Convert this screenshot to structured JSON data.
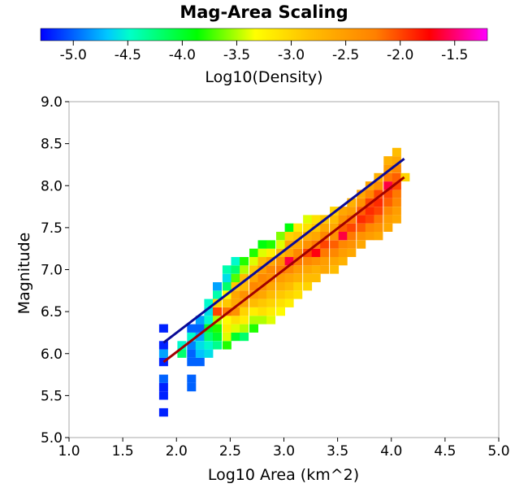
{
  "chart_data": {
    "type": "heatmap",
    "title": "Mag-Area Scaling",
    "xlabel": "Log10 Area (km^2)",
    "ylabel": "Magnitude",
    "xlim": [
      1.0,
      5.0
    ],
    "ylim": [
      5.0,
      9.0
    ],
    "x_ticks": [
      "1.0",
      "1.5",
      "2.0",
      "2.5",
      "3.0",
      "3.5",
      "4.0",
      "4.5",
      "5.0"
    ],
    "y_ticks": [
      "5.0",
      "5.5",
      "6.0",
      "6.5",
      "7.0",
      "7.5",
      "8.0",
      "8.5",
      "9.0"
    ],
    "grid": false,
    "colorbar": {
      "label": "Log10(Density)",
      "range": [
        -5.3,
        -1.2
      ],
      "ticks": [
        "-5.0",
        "-4.5",
        "-4.0",
        "-3.5",
        "-3.0",
        "-2.5",
        "-2.0",
        "-1.5"
      ],
      "colormap": "rainbow: blue-cyan-green-yellow-orange-red-magenta"
    },
    "bin_size": {
      "x": 0.0833,
      "y": 0.1
    },
    "cells": [
      [
        1.88,
        5.3,
        -5.2
      ],
      [
        1.88,
        5.5,
        -5.2
      ],
      [
        1.88,
        5.6,
        -5.2
      ],
      [
        1.88,
        5.7,
        -5.0
      ],
      [
        1.88,
        5.9,
        -5.2
      ],
      [
        1.88,
        6.0,
        -4.8
      ],
      [
        1.88,
        6.1,
        -5.2
      ],
      [
        1.88,
        6.3,
        -5.2
      ],
      [
        2.05,
        6.0,
        -4.2
      ],
      [
        2.05,
        6.1,
        -4.5
      ],
      [
        2.14,
        5.6,
        -5.0
      ],
      [
        2.14,
        5.7,
        -5.0
      ],
      [
        2.14,
        5.9,
        -5.0
      ],
      [
        2.14,
        6.0,
        -5.0
      ],
      [
        2.14,
        6.1,
        -4.9
      ],
      [
        2.14,
        6.2,
        -4.5
      ],
      [
        2.14,
        6.3,
        -5.0
      ],
      [
        2.22,
        5.9,
        -5.0
      ],
      [
        2.22,
        6.0,
        -4.7
      ],
      [
        2.22,
        6.1,
        -4.6
      ],
      [
        2.22,
        6.2,
        -4.8
      ],
      [
        2.22,
        6.3,
        -5.0
      ],
      [
        2.22,
        6.4,
        -4.8
      ],
      [
        2.3,
        6.0,
        -4.6
      ],
      [
        2.3,
        6.1,
        -4.5
      ],
      [
        2.3,
        6.2,
        -4.2
      ],
      [
        2.3,
        6.3,
        -4.0
      ],
      [
        2.3,
        6.4,
        -4.5
      ],
      [
        2.3,
        6.5,
        -4.6
      ],
      [
        2.3,
        6.6,
        -4.5
      ],
      [
        2.38,
        6.1,
        -4.3
      ],
      [
        2.38,
        6.2,
        -4.0
      ],
      [
        2.38,
        6.3,
        -3.8
      ],
      [
        2.38,
        6.4,
        -3.5
      ],
      [
        2.38,
        6.5,
        -2.0
      ],
      [
        2.38,
        6.6,
        -3.0
      ],
      [
        2.38,
        6.7,
        -4.4
      ],
      [
        2.38,
        6.8,
        -4.8
      ],
      [
        2.47,
        6.1,
        -3.8
      ],
      [
        2.47,
        6.2,
        -3.4
      ],
      [
        2.47,
        6.3,
        -3.2
      ],
      [
        2.47,
        6.4,
        -3.3
      ],
      [
        2.47,
        6.5,
        -2.2
      ],
      [
        2.47,
        6.6,
        -2.9
      ],
      [
        2.47,
        6.7,
        -3.3
      ],
      [
        2.47,
        6.8,
        -4.2
      ],
      [
        2.47,
        6.9,
        -4.6
      ],
      [
        2.47,
        7.0,
        -4.4
      ],
      [
        2.55,
        6.2,
        -4.0
      ],
      [
        2.55,
        6.3,
        -3.4
      ],
      [
        2.55,
        6.4,
        -3.1
      ],
      [
        2.55,
        6.5,
        -2.4
      ],
      [
        2.55,
        6.6,
        -2.6
      ],
      [
        2.55,
        6.7,
        -2.6
      ],
      [
        2.55,
        6.8,
        -2.9
      ],
      [
        2.55,
        6.9,
        -3.7
      ],
      [
        2.55,
        7.0,
        -4.2
      ],
      [
        2.55,
        7.1,
        -4.5
      ],
      [
        2.63,
        6.2,
        -4.2
      ],
      [
        2.63,
        6.3,
        -3.5
      ],
      [
        2.63,
        6.4,
        -3.2
      ],
      [
        2.63,
        6.5,
        -3.0
      ],
      [
        2.63,
        6.6,
        -2.6
      ],
      [
        2.63,
        6.7,
        -2.4
      ],
      [
        2.63,
        6.8,
        -2.8
      ],
      [
        2.63,
        6.9,
        -2.8
      ],
      [
        2.63,
        7.0,
        -3.5
      ],
      [
        2.63,
        7.1,
        -3.8
      ],
      [
        2.72,
        6.3,
        -3.8
      ],
      [
        2.72,
        6.4,
        -3.5
      ],
      [
        2.72,
        6.5,
        -3.2
      ],
      [
        2.72,
        6.6,
        -2.8
      ],
      [
        2.72,
        6.7,
        -2.5
      ],
      [
        2.72,
        6.8,
        -2.3
      ],
      [
        2.72,
        6.9,
        -2.6
      ],
      [
        2.72,
        7.0,
        -2.9
      ],
      [
        2.72,
        7.1,
        -3.4
      ],
      [
        2.72,
        7.2,
        -3.8
      ],
      [
        2.8,
        6.4,
        -3.5
      ],
      [
        2.8,
        6.5,
        -3.1
      ],
      [
        2.8,
        6.6,
        -2.9
      ],
      [
        2.8,
        6.7,
        -2.6
      ],
      [
        2.8,
        6.8,
        -2.4
      ],
      [
        2.8,
        6.9,
        -2.3
      ],
      [
        2.8,
        7.0,
        -2.5
      ],
      [
        2.8,
        7.1,
        -2.8
      ],
      [
        2.8,
        7.2,
        -3.4
      ],
      [
        2.8,
        7.3,
        -3.9
      ],
      [
        2.88,
        6.4,
        -3.4
      ],
      [
        2.88,
        6.5,
        -3.2
      ],
      [
        2.88,
        6.6,
        -3.0
      ],
      [
        2.88,
        6.7,
        -2.8
      ],
      [
        2.88,
        6.8,
        -2.6
      ],
      [
        2.88,
        6.9,
        -2.4
      ],
      [
        2.88,
        7.0,
        -2.3
      ],
      [
        2.88,
        7.1,
        -2.6
      ],
      [
        2.88,
        7.2,
        -3.2
      ],
      [
        2.88,
        7.3,
        -3.8
      ],
      [
        2.97,
        6.5,
        -3.3
      ],
      [
        2.97,
        6.6,
        -3.1
      ],
      [
        2.97,
        6.7,
        -2.9
      ],
      [
        2.97,
        6.8,
        -2.7
      ],
      [
        2.97,
        6.9,
        -2.5
      ],
      [
        2.97,
        7.0,
        -2.2
      ],
      [
        2.97,
        7.1,
        -2.4
      ],
      [
        2.97,
        7.2,
        -2.8
      ],
      [
        2.97,
        7.3,
        -3.4
      ],
      [
        2.97,
        7.4,
        -3.6
      ],
      [
        3.05,
        6.6,
        -3.2
      ],
      [
        3.05,
        6.7,
        -3.0
      ],
      [
        3.05,
        6.8,
        -2.8
      ],
      [
        3.05,
        6.9,
        -2.6
      ],
      [
        3.05,
        7.0,
        -2.3
      ],
      [
        3.05,
        7.1,
        -1.6
      ],
      [
        3.05,
        7.2,
        -2.6
      ],
      [
        3.05,
        7.3,
        -2.6
      ],
      [
        3.05,
        7.4,
        -3.0
      ],
      [
        3.05,
        7.5,
        -3.9
      ],
      [
        3.13,
        6.7,
        -3.1
      ],
      [
        3.13,
        6.8,
        -3.0
      ],
      [
        3.13,
        6.9,
        -2.7
      ],
      [
        3.13,
        7.0,
        -2.5
      ],
      [
        3.13,
        7.1,
        -2.2
      ],
      [
        3.13,
        7.2,
        -2.3
      ],
      [
        3.13,
        7.3,
        -2.6
      ],
      [
        3.13,
        7.4,
        -2.9
      ],
      [
        3.13,
        7.5,
        -3.2
      ],
      [
        3.22,
        6.8,
        -3.0
      ],
      [
        3.22,
        6.9,
        -2.8
      ],
      [
        3.22,
        7.0,
        -2.6
      ],
      [
        3.22,
        7.1,
        -2.3
      ],
      [
        3.22,
        7.2,
        -2.0
      ],
      [
        3.22,
        7.3,
        -2.4
      ],
      [
        3.22,
        7.4,
        -2.7
      ],
      [
        3.22,
        7.5,
        -3.1
      ],
      [
        3.22,
        7.6,
        -3.4
      ],
      [
        3.3,
        6.9,
        -2.8
      ],
      [
        3.3,
        7.0,
        -2.7
      ],
      [
        3.3,
        7.1,
        -2.4
      ],
      [
        3.3,
        7.2,
        -1.7
      ],
      [
        3.3,
        7.3,
        -2.2
      ],
      [
        3.3,
        7.4,
        -2.6
      ],
      [
        3.3,
        7.5,
        -2.9
      ],
      [
        3.3,
        7.6,
        -3.1
      ],
      [
        3.38,
        7.0,
        -2.6
      ],
      [
        3.38,
        7.1,
        -2.5
      ],
      [
        3.38,
        7.2,
        -2.2
      ],
      [
        3.38,
        7.3,
        -2.0
      ],
      [
        3.38,
        7.4,
        -2.3
      ],
      [
        3.38,
        7.5,
        -2.6
      ],
      [
        3.38,
        7.6,
        -2.9
      ],
      [
        3.47,
        7.0,
        -2.8
      ],
      [
        3.47,
        7.1,
        -2.6
      ],
      [
        3.47,
        7.2,
        -2.3
      ],
      [
        3.47,
        7.3,
        -2.1
      ],
      [
        3.47,
        7.4,
        -2.4
      ],
      [
        3.47,
        7.5,
        -2.6
      ],
      [
        3.47,
        7.6,
        -2.8
      ],
      [
        3.47,
        7.7,
        -3.0
      ],
      [
        3.55,
        7.1,
        -2.7
      ],
      [
        3.55,
        7.2,
        -2.5
      ],
      [
        3.55,
        7.3,
        -2.3
      ],
      [
        3.55,
        7.4,
        -1.6
      ],
      [
        3.55,
        7.5,
        -2.1
      ],
      [
        3.55,
        7.6,
        -2.4
      ],
      [
        3.55,
        7.7,
        -2.6
      ],
      [
        3.63,
        7.2,
        -2.6
      ],
      [
        3.63,
        7.3,
        -2.4
      ],
      [
        3.63,
        7.4,
        -2.2
      ],
      [
        3.63,
        7.5,
        -2.0
      ],
      [
        3.63,
        7.6,
        -2.2
      ],
      [
        3.63,
        7.7,
        -2.5
      ],
      [
        3.63,
        7.8,
        -2.7
      ],
      [
        3.72,
        7.3,
        -2.6
      ],
      [
        3.72,
        7.4,
        -2.4
      ],
      [
        3.72,
        7.5,
        -2.1
      ],
      [
        3.72,
        7.6,
        -1.9
      ],
      [
        3.72,
        7.7,
        -2.1
      ],
      [
        3.72,
        7.8,
        -2.4
      ],
      [
        3.72,
        7.9,
        -2.6
      ],
      [
        3.8,
        7.4,
        -2.5
      ],
      [
        3.8,
        7.5,
        -2.3
      ],
      [
        3.8,
        7.6,
        -2.0
      ],
      [
        3.8,
        7.7,
        -1.9
      ],
      [
        3.8,
        7.8,
        -2.0
      ],
      [
        3.8,
        7.9,
        -2.3
      ],
      [
        3.8,
        8.0,
        -2.6
      ],
      [
        3.88,
        7.4,
        -2.6
      ],
      [
        3.88,
        7.5,
        -2.4
      ],
      [
        3.88,
        7.6,
        -2.2
      ],
      [
        3.88,
        7.7,
        -2.0
      ],
      [
        3.88,
        7.8,
        -1.9
      ],
      [
        3.88,
        7.9,
        -2.0
      ],
      [
        3.88,
        8.0,
        -2.4
      ],
      [
        3.88,
        8.1,
        -2.7
      ],
      [
        3.97,
        7.5,
        -2.6
      ],
      [
        3.97,
        7.6,
        -2.5
      ],
      [
        3.97,
        7.7,
        -2.3
      ],
      [
        3.97,
        7.8,
        -2.1
      ],
      [
        3.97,
        7.9,
        -2.0
      ],
      [
        3.97,
        8.0,
        -1.6
      ],
      [
        3.97,
        8.1,
        -2.2
      ],
      [
        3.97,
        8.2,
        -2.5
      ],
      [
        3.97,
        8.3,
        -2.7
      ],
      [
        4.05,
        7.6,
        -2.6
      ],
      [
        4.05,
        7.7,
        -2.5
      ],
      [
        4.05,
        7.8,
        -2.3
      ],
      [
        4.05,
        7.9,
        -2.2
      ],
      [
        4.05,
        8.0,
        -2.0
      ],
      [
        4.05,
        8.1,
        -2.1
      ],
      [
        4.05,
        8.2,
        -2.3
      ],
      [
        4.05,
        8.3,
        -2.6
      ],
      [
        4.05,
        8.4,
        -2.8
      ],
      [
        4.13,
        8.1,
        -3.0
      ]
    ],
    "series": [
      {
        "type": "line",
        "color": "#0a0a96",
        "x": [
          1.88,
          4.12
        ],
        "y": [
          6.13,
          8.32
        ]
      },
      {
        "type": "line",
        "color": "#a00000",
        "x": [
          1.88,
          4.12
        ],
        "y": [
          5.9,
          8.1
        ]
      }
    ]
  }
}
